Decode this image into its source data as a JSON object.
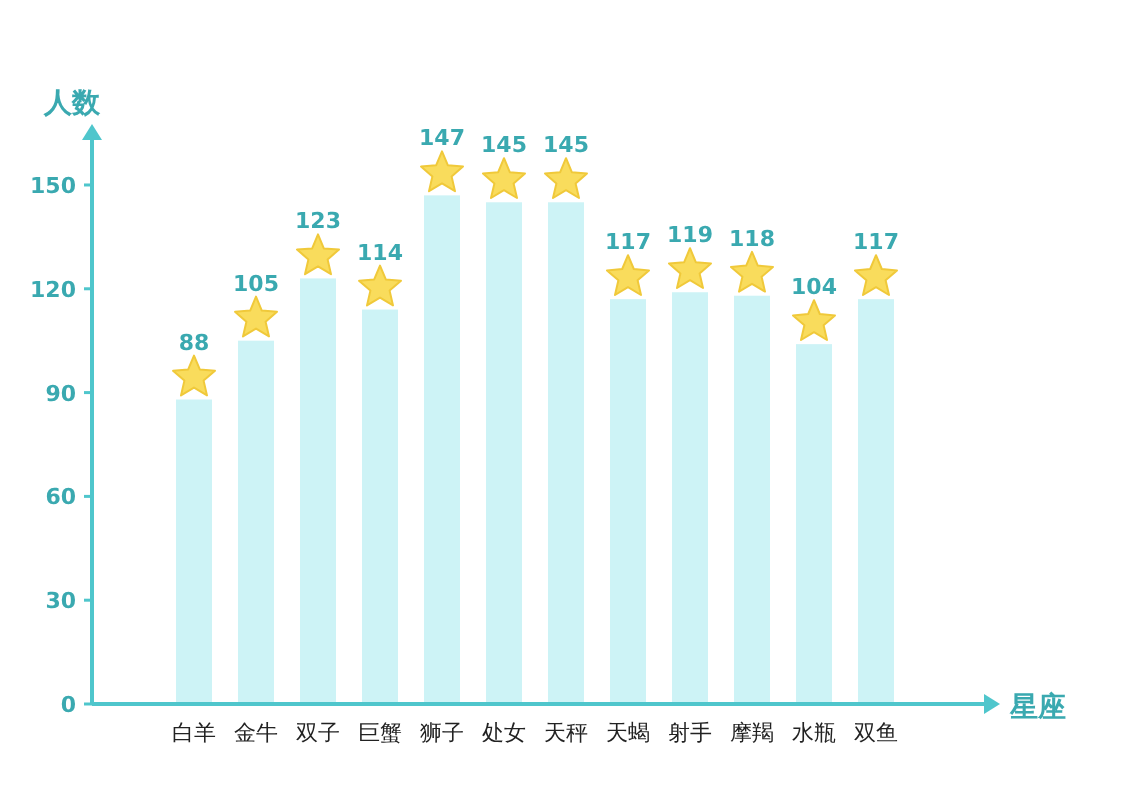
{
  "chart_data": {
    "type": "bar",
    "ylabel": "人数",
    "xlabel": "星座",
    "categories": [
      "白羊",
      "金牛",
      "双子",
      "巨蟹",
      "狮子",
      "处女",
      "天秤",
      "天蝎",
      "射手",
      "摩羯",
      "水瓶",
      "双鱼"
    ],
    "values": [
      88,
      105,
      123,
      114,
      147,
      145,
      145,
      117,
      119,
      118,
      104,
      117
    ],
    "color": "#cdf3f6",
    "ylim": [
      0,
      163
    ],
    "yticks": [
      0,
      30,
      60,
      90,
      120,
      150
    ],
    "data_labels": true,
    "grid": false
  }
}
